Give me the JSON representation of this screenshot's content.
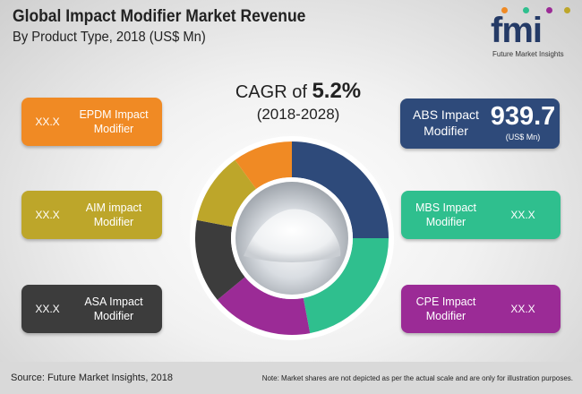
{
  "header": {
    "title": "Global Impact Modifier Market Revenue",
    "subtitle": "By Product Type, 2018 (US$ Mn)"
  },
  "logo": {
    "text": "fmi",
    "subtext": "Future Market Insights"
  },
  "cagr": {
    "prefix": "CAGR of ",
    "value": "5.2%",
    "period": "(2018-2028)"
  },
  "cards": {
    "epdm": {
      "value": "XX.X",
      "label": "EPDM Impact Modifier",
      "color": "#f08a24"
    },
    "aim": {
      "value": "XX.X",
      "label": "AIM impact Modifier",
      "color": "#bda62a"
    },
    "asa": {
      "value": "XX.X",
      "label": "ASA Impact Modifier",
      "color": "#3c3c3c"
    },
    "abs": {
      "value": "939.7",
      "unit": "(US$ Mn)",
      "label": "ABS Impact Modifier",
      "color": "#2e4a7a"
    },
    "mbs": {
      "value": "XX.X",
      "label": "MBS Impact Modifier",
      "color": "#2fbf8e"
    },
    "cpe": {
      "value": "XX.X",
      "label": "CPE Impact Modifier",
      "color": "#9b2b96"
    }
  },
  "chart_data": {
    "type": "pie",
    "note": "Market shares are not depicted as per the actual scale and are only for illustration purposes.",
    "series": [
      {
        "name": "ABS Impact Modifier",
        "value": 25,
        "color": "#2e4a7a"
      },
      {
        "name": "MBS Impact Modifier",
        "value": 22,
        "color": "#2fbf8e"
      },
      {
        "name": "CPE Impact Modifier",
        "value": 17,
        "color": "#9b2b96"
      },
      {
        "name": "ASA Impact Modifier",
        "value": 14,
        "color": "#3c3c3c"
      },
      {
        "name": "AIM impact Modifier",
        "value": 12,
        "color": "#bda62a"
      },
      {
        "name": "EPDM Impact Modifier",
        "value": 10,
        "color": "#f08a24"
      }
    ]
  },
  "footer": {
    "source": "Source: Future Market Insights, 2018",
    "note": "Note: Market shares are not depicted as per the actual scale and are only for illustration purposes."
  }
}
